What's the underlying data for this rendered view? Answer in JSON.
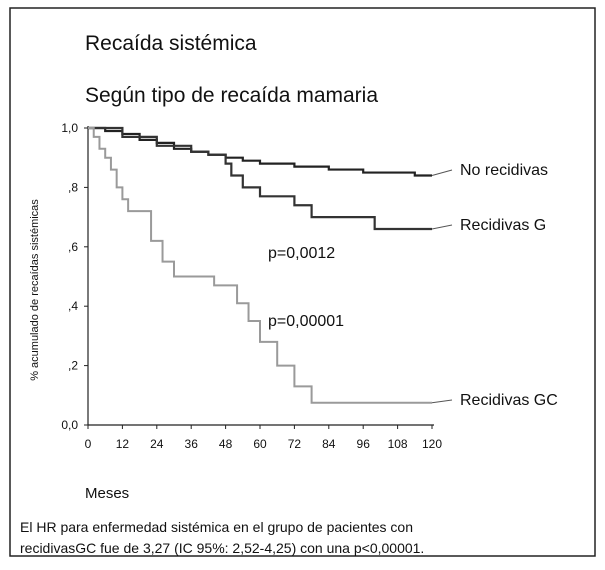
{
  "chart_data": {
    "type": "line",
    "step": true,
    "title": "Recaída sistémica",
    "subtitle": "Según tipo de recaída mamaria",
    "ylabel": "% acumulado de recaídas sistémicas",
    "xlabel": "Meses",
    "xlim": [
      0,
      120
    ],
    "xticks": [
      0,
      12,
      24,
      36,
      48,
      60,
      72,
      84,
      96,
      108,
      120
    ],
    "ylim": [
      0,
      1
    ],
    "yticks": [
      {
        "value": 0,
        "label": "0,0"
      },
      {
        "value": 0.2,
        "label": ",2"
      },
      {
        "value": 0.4,
        "label": ",4"
      },
      {
        "value": 0.6,
        "label": ",6"
      },
      {
        "value": 0.8,
        "label": ",8"
      },
      {
        "value": 1,
        "label": "1,0"
      }
    ],
    "series": [
      {
        "name": "No recidivas",
        "color": "#222222",
        "x": [
          0,
          6,
          12,
          18,
          24,
          30,
          36,
          42,
          48,
          54,
          60,
          66,
          72,
          78,
          84,
          90,
          96,
          102,
          108,
          114,
          120
        ],
        "values": [
          1,
          0.99,
          0.98,
          0.96,
          0.95,
          0.93,
          0.92,
          0.91,
          0.9,
          0.89,
          0.88,
          0.88,
          0.87,
          0.87,
          0.86,
          0.86,
          0.85,
          0.85,
          0.85,
          0.84,
          0.84
        ]
      },
      {
        "name": "Recidivas G",
        "color": "#333333",
        "x": [
          0,
          12,
          24,
          36,
          42,
          48,
          50,
          54,
          60,
          72,
          78,
          96,
          100,
          120
        ],
        "values": [
          1,
          0.97,
          0.94,
          0.92,
          0.91,
          0.88,
          0.84,
          0.8,
          0.77,
          0.74,
          0.7,
          0.7,
          0.66,
          0.66
        ]
      },
      {
        "name": "Recidivas GC",
        "color": "#9a9a9a",
        "x": [
          0,
          2,
          4,
          6,
          8,
          10,
          12,
          14,
          22,
          26,
          30,
          44,
          52,
          56,
          60,
          66,
          72,
          78,
          120
        ],
        "values": [
          1,
          0.97,
          0.93,
          0.9,
          0.86,
          0.8,
          0.76,
          0.72,
          0.62,
          0.55,
          0.5,
          0.47,
          0.41,
          0.35,
          0.28,
          0.2,
          0.13,
          0.075,
          0.075
        ]
      }
    ],
    "annotations": [
      "p=0,0012",
      "p=0,00001"
    ],
    "footnote": [
      "El HR para enfermedad sistémica en el grupo de pacientes con",
      "recidivasGC fue de 3,27 (IC 95%: 2,52-4,25) con una p<0,00001."
    ]
  }
}
